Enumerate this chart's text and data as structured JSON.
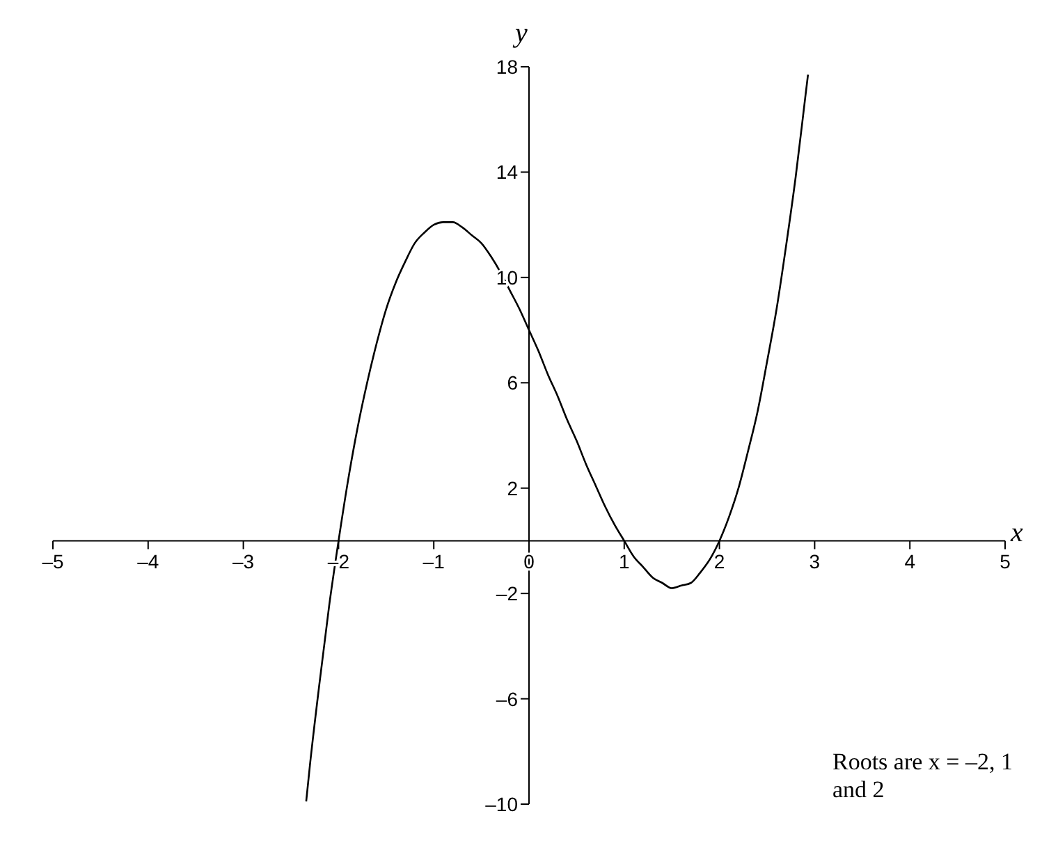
{
  "chart_data": {
    "type": "line",
    "xlabel": "x",
    "ylabel": "y",
    "xlim": [
      -5,
      5
    ],
    "ylim": [
      -10,
      18
    ],
    "xticks": [
      {
        "value": -5,
        "label": "–5"
      },
      {
        "value": -4,
        "label": "–4"
      },
      {
        "value": -3,
        "label": "–3"
      },
      {
        "value": -2,
        "label": "–2"
      },
      {
        "value": -1,
        "label": "–1"
      },
      0,
      1,
      2,
      3,
      4,
      5
    ],
    "yticks": [
      {
        "value": -10,
        "label": "–10"
      },
      {
        "value": -6,
        "label": "–6"
      },
      {
        "value": -2,
        "label": "–2"
      },
      2,
      6,
      10,
      14,
      18
    ],
    "series": [
      {
        "color": "#000000",
        "x": [
          -2.34,
          -2.3,
          -2.2,
          -2.1,
          -2.0,
          -1.9,
          -1.8,
          -1.7,
          -1.6,
          -1.5,
          -1.4,
          -1.3,
          -1.2,
          -1.1,
          -1.0,
          -0.9,
          -0.8,
          -0.7,
          -0.6,
          -0.5,
          -0.4,
          -0.3,
          -0.2,
          -0.1,
          0,
          0.1,
          0.2,
          0.3,
          0.4,
          0.5,
          0.6,
          0.7,
          0.8,
          0.9,
          1.0,
          1.1,
          1.2,
          1.3,
          1.4,
          1.5,
          1.6,
          1.7,
          1.8,
          1.9,
          2.0,
          2.1,
          2.2,
          2.3,
          2.4,
          2.5,
          2.6,
          2.7,
          2.8,
          2.9,
          2.93
        ],
        "values": [
          -9.9,
          -8.5,
          -5.4,
          -2.5,
          0,
          2.3,
          4.3,
          6.0,
          7.5,
          8.8,
          9.8,
          10.6,
          11.3,
          11.7,
          12.0,
          12.1,
          12.1,
          11.9,
          11.6,
          11.3,
          10.8,
          10.2,
          9.5,
          8.8,
          8.0,
          7.2,
          6.3,
          5.5,
          4.6,
          3.8,
          2.9,
          2.1,
          1.3,
          0.6,
          0,
          -0.6,
          -1.0,
          -1.4,
          -1.6,
          -1.8,
          -1.7,
          -1.6,
          -1.2,
          -0.7,
          0,
          0.9,
          2.0,
          3.4,
          4.9,
          6.8,
          8.8,
          11.2,
          13.8,
          16.8,
          17.7
        ]
      }
    ],
    "annotations": [
      "Roots are x = –2, 1 and 2"
    ]
  }
}
